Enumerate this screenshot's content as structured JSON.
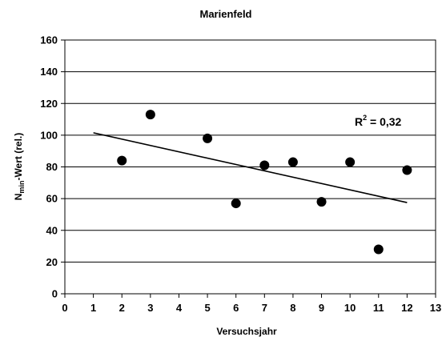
{
  "chart_data": {
    "type": "scatter",
    "title": "Marienfeld",
    "xlabel": "Versuchsjahr",
    "ylabel": {
      "main": "N",
      "subscript": "min",
      "rest": "-Wert (rel.)"
    },
    "xlim": [
      0,
      13
    ],
    "ylim": [
      0,
      160
    ],
    "x_ticks": [
      0,
      1,
      2,
      3,
      4,
      5,
      6,
      7,
      8,
      9,
      10,
      11,
      12,
      13
    ],
    "y_ticks": [
      0,
      20,
      40,
      60,
      80,
      100,
      120,
      140,
      160
    ],
    "grid": "horizontal",
    "series": [
      {
        "x": [
          2,
          3,
          5,
          6,
          7,
          8,
          9,
          10,
          11,
          12
        ],
        "y": [
          84,
          113,
          98,
          57,
          81,
          83,
          58,
          83,
          28,
          78
        ],
        "marker_color": "#000000"
      }
    ],
    "trendline": {
      "x": [
        1,
        12
      ],
      "y": [
        101.5,
        57.5
      ],
      "color": "#000000"
    },
    "annotation": {
      "r_label": "R",
      "r_exponent": "2",
      "r_value": " = 0,32"
    }
  }
}
